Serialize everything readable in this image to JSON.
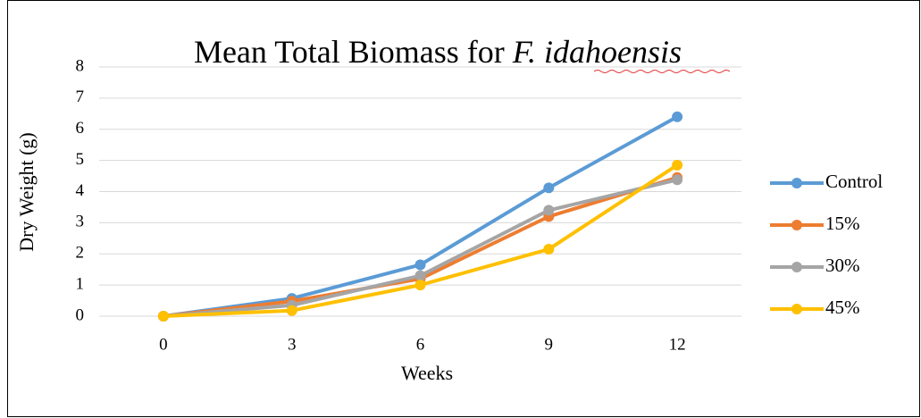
{
  "chart_data": {
    "type": "line",
    "title": "Mean Total Biomass for",
    "title_italic": "F. idahoensis",
    "x_label": "Weeks",
    "y_label": "Dry Weight (g)",
    "categories": [
      "0",
      "3",
      "6",
      "9",
      "12"
    ],
    "series": [
      {
        "name": "Control",
        "color": "#5b9bd5",
        "values": [
          0,
          0.57,
          1.65,
          4.12,
          6.4
        ]
      },
      {
        "name": "15%",
        "color": "#ed7d31",
        "values": [
          0,
          0.48,
          1.2,
          3.2,
          4.45
        ]
      },
      {
        "name": "30%",
        "color": "#a5a5a5",
        "values": [
          0,
          0.35,
          1.3,
          3.4,
          4.38
        ]
      },
      {
        "name": "45%",
        "color": "#ffc000",
        "values": [
          0,
          0.18,
          1.0,
          2.15,
          4.85
        ]
      }
    ],
    "ylim": [
      0,
      8
    ],
    "yticks": [
      0,
      1,
      2,
      3,
      4,
      5,
      6,
      7,
      8
    ],
    "grid": true,
    "legend": "right"
  }
}
